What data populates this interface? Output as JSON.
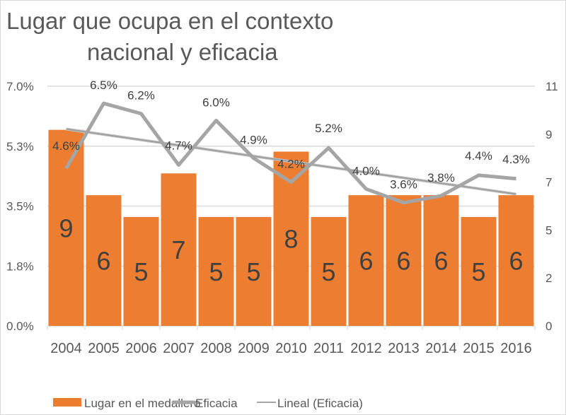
{
  "chart_data": {
    "type": "bar",
    "title": "Lugar que ocupa en el contexto nacional y eficacia",
    "title_lines": [
      "Lugar que ocupa en el contexto",
      "nacional y eficacia"
    ],
    "categories": [
      "2004",
      "2005",
      "2006",
      "2007",
      "2008",
      "2009",
      "2010",
      "2011",
      "2012",
      "2013",
      "2014",
      "2015",
      "2016"
    ],
    "series": [
      {
        "name": "Lugar en el medallero",
        "type": "bar",
        "axis": "right",
        "color": "#ed7d31",
        "values": [
          9,
          6,
          5,
          7,
          5,
          5,
          8,
          5,
          6,
          6,
          6,
          5,
          6
        ],
        "labels": [
          "9",
          "6",
          "5",
          "7",
          "5",
          "5",
          "8",
          "5",
          "6",
          "6",
          "6",
          "5",
          "6"
        ]
      },
      {
        "name": "Eficacia",
        "type": "line",
        "axis": "left",
        "color": "#a5a5a5",
        "values": [
          4.6,
          6.5,
          6.2,
          4.7,
          6.0,
          4.9,
          4.2,
          5.2,
          4.0,
          3.6,
          3.8,
          4.4,
          4.3
        ],
        "labels": [
          "4.6%",
          "6.5%",
          "6.2%",
          "4.7%",
          "6.0%",
          "4.9%",
          "4.2%",
          "5.2%",
          "4.0%",
          "3.6%",
          "3.8%",
          "4.4%",
          "4.3%"
        ]
      },
      {
        "name": "Lineal (Eficacia)",
        "type": "trendline",
        "axis": "left",
        "color": "#a5a5a5",
        "values_start_end": [
          5.75,
          3.85
        ]
      }
    ],
    "left_axis": {
      "ylim": [
        0,
        7
      ],
      "ticks": [
        "0.0%",
        "1.8%",
        "3.5%",
        "5.3%",
        "7.0%"
      ]
    },
    "right_axis": {
      "ylim": [
        0,
        11
      ],
      "ticks": [
        "0",
        "2",
        "5",
        "7",
        "9",
        "11"
      ]
    },
    "grid": true,
    "legend": "bottom"
  }
}
